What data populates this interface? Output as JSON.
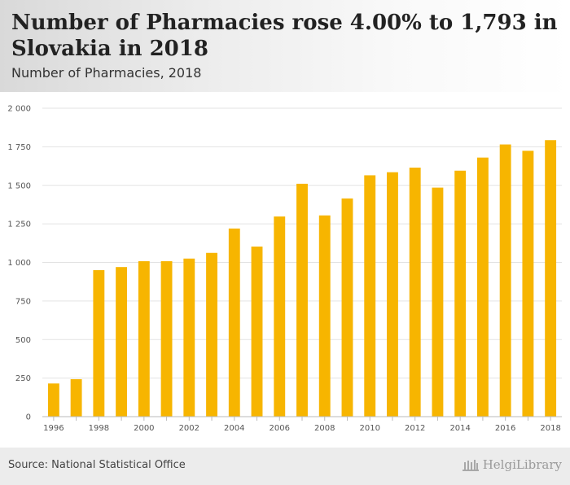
{
  "header": {
    "title": "Number of Pharmacies rose 4.00% to 1,793 in Slovakia in 2018",
    "subtitle": "Number of Pharmacies, 2018"
  },
  "footer": {
    "source": "Source: National Statistical Office",
    "logo_text": "HelgiLibrary",
    "logo_icon": "library-building-icon"
  },
  "colors": {
    "bar": "#f7b500",
    "grid": "#e3e3e3",
    "axis": "#bbbbbb"
  },
  "chart_data": {
    "type": "bar",
    "categories": [
      "1996",
      "1997",
      "1998",
      "1999",
      "2000",
      "2001",
      "2002",
      "2003",
      "2004",
      "2005",
      "2006",
      "2007",
      "2008",
      "2009",
      "2010",
      "2011",
      "2012",
      "2013",
      "2014",
      "2015",
      "2016",
      "2017",
      "2018"
    ],
    "values": [
      215,
      243,
      950,
      970,
      1008,
      1008,
      1025,
      1062,
      1220,
      1103,
      1298,
      1510,
      1305,
      1415,
      1565,
      1585,
      1615,
      1485,
      1595,
      1680,
      1765,
      1724,
      1793
    ],
    "x_tick_labels": [
      "1996",
      "1998",
      "2000",
      "2002",
      "2004",
      "2006",
      "2008",
      "2010",
      "2012",
      "2014",
      "2016",
      "2018"
    ],
    "y_ticks": [
      0,
      250,
      500,
      750,
      1000,
      1250,
      1500,
      1750,
      2000
    ],
    "y_tick_labels": [
      "0",
      "250",
      "500",
      "750",
      "1 000",
      "1 250",
      "1 500",
      "1 750",
      "2 000"
    ],
    "ylim": [
      0,
      2000
    ],
    "grid": true,
    "legend": "none",
    "title": "Number of Pharmacies rose 4.00% to 1,793 in Slovakia in 2018",
    "subtitle": "Number of Pharmacies, 2018",
    "xlabel": "",
    "ylabel": ""
  }
}
